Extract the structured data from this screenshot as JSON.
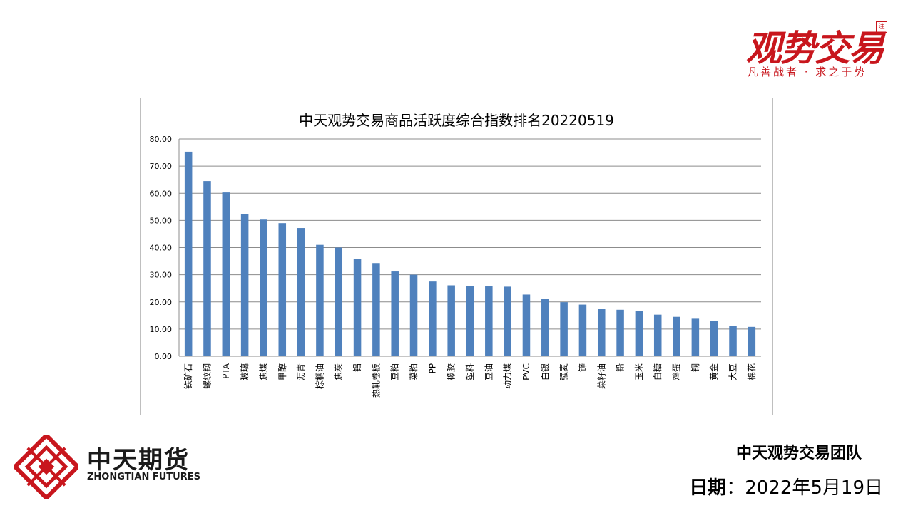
{
  "brand": {
    "title": "观势交易",
    "seal": "注",
    "slogan": "凡善战者 · 求之于势"
  },
  "logo": {
    "name": "中天期货",
    "en": "ZHONGTIAN FUTURES",
    "color": "#c8161d"
  },
  "footer": {
    "team": "中天观势交易团队",
    "date_label": "日期",
    "date_sep": "：",
    "date_value": "2022年5月19日"
  },
  "chart_data": {
    "type": "bar",
    "title": "中天观势交易商品活跃度综合指数排名20220519",
    "categories": [
      "铁矿石",
      "螺纹钢",
      "PTA",
      "玻璃",
      "焦煤",
      "甲醇",
      "沥青",
      "棕榈油",
      "焦炭",
      "铝",
      "热轧卷板",
      "豆粕",
      "菜粕",
      "PP",
      "橡胶",
      "塑料",
      "豆油",
      "动力煤",
      "PVC",
      "白银",
      "强麦",
      "锌",
      "菜籽油",
      "铅",
      "玉米",
      "白糖",
      "鸡蛋",
      "铜",
      "黄金",
      "大豆",
      "棉花"
    ],
    "values": [
      75.3,
      64.5,
      60.3,
      52.2,
      50.3,
      49.0,
      47.2,
      41.0,
      40.0,
      35.7,
      34.3,
      31.2,
      30.0,
      27.5,
      26.1,
      25.8,
      25.7,
      25.6,
      22.7,
      21.1,
      19.9,
      19.0,
      17.5,
      17.1,
      16.6,
      15.3,
      14.5,
      13.8,
      12.9,
      11.1,
      10.8
    ],
    "y_ticks": [
      "0.00",
      "10.00",
      "20.00",
      "30.00",
      "40.00",
      "50.00",
      "60.00",
      "70.00",
      "80.00"
    ],
    "ylim": [
      0,
      80
    ],
    "grid": true,
    "bar_color": "#4f81bd",
    "xlabel": "",
    "ylabel": ""
  }
}
